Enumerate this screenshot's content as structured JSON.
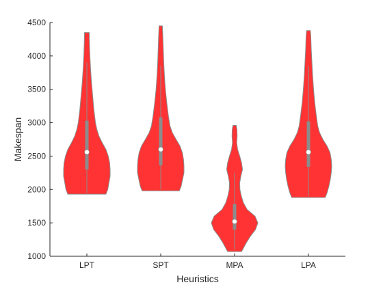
{
  "chart_data": {
    "type": "violin",
    "title": "",
    "xlabel": "Heuristics",
    "ylabel": "Makespan",
    "ylim": [
      1000,
      4500
    ],
    "yticks": [
      1000,
      1500,
      2000,
      2500,
      3000,
      3500,
      4000,
      4500
    ],
    "categories": [
      "LPT",
      "SPT",
      "MPA",
      "LPA"
    ],
    "grid": false,
    "violin_color": "#ff3333",
    "edge_color": "#8c8c8c",
    "box_color": "#8c8c8c",
    "median_marker_color": "#ffffff",
    "series": [
      {
        "category": "LPT",
        "min": 1930,
        "max": 4350,
        "q1": 2300,
        "median": 2560,
        "q3": 3030,
        "whisker_low": 1950,
        "whisker_high": 3900,
        "density": [
          [
            1930,
            0.82
          ],
          [
            2000,
            0.9
          ],
          [
            2100,
            0.95
          ],
          [
            2200,
            1.0
          ],
          [
            2300,
            1.0
          ],
          [
            2400,
            0.98
          ],
          [
            2500,
            0.92
          ],
          [
            2600,
            0.82
          ],
          [
            2700,
            0.66
          ],
          [
            2800,
            0.52
          ],
          [
            2900,
            0.43
          ],
          [
            3000,
            0.37
          ],
          [
            3200,
            0.3
          ],
          [
            3400,
            0.25
          ],
          [
            3600,
            0.2
          ],
          [
            3800,
            0.16
          ],
          [
            4000,
            0.13
          ],
          [
            4200,
            0.11
          ],
          [
            4350,
            0.1
          ]
        ]
      },
      {
        "category": "SPT",
        "min": 1980,
        "max": 4450,
        "q1": 2360,
        "median": 2600,
        "q3": 3080,
        "whisker_low": 2000,
        "whisker_high": 3850,
        "density": [
          [
            1980,
            0.8
          ],
          [
            2050,
            0.88
          ],
          [
            2150,
            0.94
          ],
          [
            2250,
            1.0
          ],
          [
            2350,
            1.0
          ],
          [
            2450,
            0.98
          ],
          [
            2550,
            0.93
          ],
          [
            2650,
            0.83
          ],
          [
            2750,
            0.66
          ],
          [
            2850,
            0.5
          ],
          [
            2950,
            0.4
          ],
          [
            3100,
            0.33
          ],
          [
            3300,
            0.26
          ],
          [
            3500,
            0.2
          ],
          [
            3700,
            0.16
          ],
          [
            3900,
            0.13
          ],
          [
            4100,
            0.11
          ],
          [
            4300,
            0.09
          ],
          [
            4450,
            0.07
          ]
        ]
      },
      {
        "category": "MPA",
        "min": 1070,
        "max": 2960,
        "q1": 1400,
        "median": 1520,
        "q3": 1780,
        "whisker_low": 1100,
        "whisker_high": 2250,
        "density": [
          [
            1070,
            0.3
          ],
          [
            1200,
            0.5
          ],
          [
            1300,
            0.68
          ],
          [
            1400,
            0.9
          ],
          [
            1500,
            1.0
          ],
          [
            1600,
            0.88
          ],
          [
            1700,
            0.54
          ],
          [
            1800,
            0.38
          ],
          [
            1900,
            0.29
          ],
          [
            2000,
            0.23
          ],
          [
            2100,
            0.22
          ],
          [
            2200,
            0.27
          ],
          [
            2300,
            0.34
          ],
          [
            2400,
            0.3
          ],
          [
            2500,
            0.22
          ],
          [
            2600,
            0.13
          ],
          [
            2700,
            0.09
          ],
          [
            2800,
            0.11
          ],
          [
            2900,
            0.1
          ],
          [
            2960,
            0.07
          ]
        ]
      },
      {
        "category": "LPA",
        "min": 1880,
        "max": 4380,
        "q1": 2340,
        "median": 2560,
        "q3": 3020,
        "whisker_low": 1900,
        "whisker_high": 3850,
        "density": [
          [
            1880,
            0.72
          ],
          [
            1950,
            0.8
          ],
          [
            2050,
            0.88
          ],
          [
            2150,
            0.94
          ],
          [
            2250,
            0.98
          ],
          [
            2350,
            1.0
          ],
          [
            2450,
            0.98
          ],
          [
            2550,
            0.93
          ],
          [
            2650,
            0.8
          ],
          [
            2750,
            0.62
          ],
          [
            2850,
            0.48
          ],
          [
            2950,
            0.4
          ],
          [
            3100,
            0.34
          ],
          [
            3300,
            0.27
          ],
          [
            3500,
            0.22
          ],
          [
            3700,
            0.18
          ],
          [
            3900,
            0.15
          ],
          [
            4100,
            0.12
          ],
          [
            4300,
            0.1
          ],
          [
            4380,
            0.08
          ]
        ]
      }
    ]
  }
}
